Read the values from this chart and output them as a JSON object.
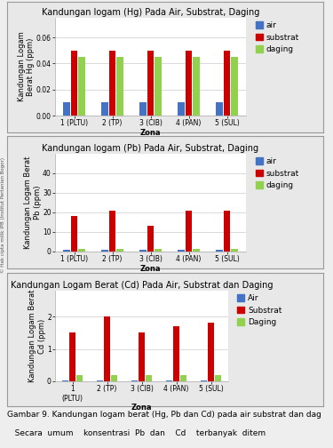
{
  "chart1": {
    "title": "Kandungan logam (Hg) Pada Air, Substrat, Daging",
    "ylabel": "Kandungan Logam\nBerat Hg (ppm)",
    "xlabel": "Zona",
    "categories": [
      "1 (PLTU)",
      "2 (TP)",
      "3 (CIB)",
      "4 (PAN)",
      "5 (SUL)"
    ],
    "air": [
      0.01,
      0.01,
      0.01,
      0.01,
      0.01
    ],
    "substrat": [
      0.05,
      0.05,
      0.05,
      0.05,
      0.05
    ],
    "daging": [
      0.045,
      0.045,
      0.045,
      0.045,
      0.045
    ],
    "ylim": [
      0,
      0.075
    ],
    "yticks": [
      0,
      0.02,
      0.04,
      0.06
    ],
    "legend": [
      "air",
      "substrat",
      "daging"
    ]
  },
  "chart2": {
    "title": "Kandungan logam (Pb) Pada Air, Substrat, Daging",
    "ylabel": "Kandungan Logam Berat\nPb (ppm)",
    "xlabel": "Zona",
    "categories": [
      "1 (PLTU)",
      "2 (TP)",
      "3 (CIB)",
      "4 (PAN)",
      "5 (SUL)"
    ],
    "air": [
      0.8,
      0.8,
      0.8,
      0.8,
      0.8
    ],
    "substrat": [
      18.0,
      21.0,
      13.0,
      21.0,
      21.0
    ],
    "daging": [
      1.5,
      1.5,
      1.5,
      1.5,
      1.5
    ],
    "ylim": [
      0,
      50
    ],
    "yticks": [
      0,
      10,
      20,
      30,
      40
    ],
    "legend": [
      "air",
      "substrat",
      "daging"
    ]
  },
  "chart3": {
    "title": "Kandungan Logam Berat (Cd) Pada Air, Substrat dan Daging",
    "ylabel": "Kandungan Logam Berat\nCd (ppm)",
    "xlabel": "Zona",
    "categories": [
      "1\n(PLTU)",
      "2 (TP)",
      "3 (CIB)",
      "4 (PAN)",
      "5 (SUL)"
    ],
    "air": [
      0.04,
      0.04,
      0.04,
      0.04,
      0.04
    ],
    "substrat": [
      1.5,
      2.0,
      1.5,
      1.7,
      1.8
    ],
    "daging": [
      0.2,
      0.2,
      0.2,
      0.2,
      0.2
    ],
    "ylim": [
      0,
      2.8
    ],
    "yticks": [
      0,
      1,
      2
    ],
    "legend": [
      "Air",
      "Substrat",
      "Daging"
    ]
  },
  "caption": "Gambar 9. Kandungan logam berat (Hg, Pb dan Cd) pada air substrat dan dag",
  "footnote": "   Secara  umum    konsentrasi  Pb  dan    Cd    terbanyak  ditem",
  "color_air": "#4472C4",
  "color_substrat": "#CC0000",
  "color_daging": "#92D050",
  "fig_bg": "#EEEEEE",
  "panel_bg": "#FFFFFF",
  "panel_outer_bg": "#E8E8E8",
  "title_fontsize": 7.0,
  "label_fontsize": 6.0,
  "tick_fontsize": 5.5,
  "legend_fontsize": 6.5,
  "caption_fontsize": 6.5,
  "bar_width": 0.2
}
